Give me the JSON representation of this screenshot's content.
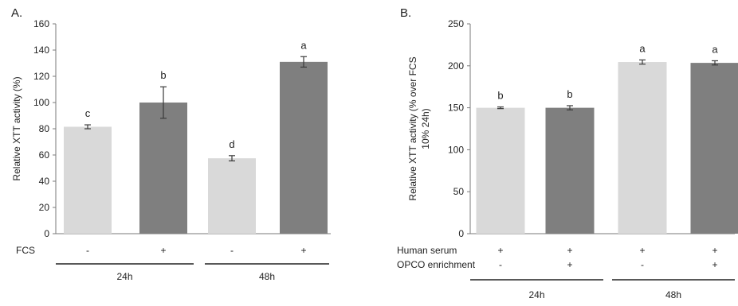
{
  "chart_data": [
    {
      "type": "bar",
      "panel_label": "A.",
      "ylabel": "Relative XTT activity (%)",
      "ylim": [
        0,
        160
      ],
      "yticks": [
        0,
        20,
        40,
        60,
        80,
        100,
        120,
        140,
        160
      ],
      "categories": [
        "24h -",
        "24h +",
        "48h -",
        "48h +"
      ],
      "values": [
        81.5,
        100,
        57.5,
        131
      ],
      "errors": [
        1.5,
        12,
        2,
        4
      ],
      "significance": [
        "c",
        "b",
        "d",
        "a"
      ],
      "bar_colors": [
        "#d9d9d9",
        "#7f7f7f",
        "#d9d9d9",
        "#7f7f7f"
      ],
      "conditions": [
        {
          "label": "FCS",
          "signs": [
            "-",
            "+",
            "-",
            "+"
          ]
        }
      ],
      "groups": [
        "24h",
        "48h"
      ]
    },
    {
      "type": "bar",
      "panel_label": "B.",
      "ylabel_lines": [
        "Relative XTT activity (% over FCS",
        "10% 24h)"
      ],
      "ylim": [
        0,
        250
      ],
      "yticks": [
        0,
        50,
        100,
        150,
        200,
        250
      ],
      "categories": [
        "24h -",
        "24h +",
        "48h -",
        "48h +"
      ],
      "values": [
        150,
        150,
        204.5,
        203.5
      ],
      "errors": [
        1,
        2.5,
        2.5,
        2.5
      ],
      "significance": [
        "b",
        "b",
        "a",
        "a"
      ],
      "bar_colors": [
        "#d9d9d9",
        "#7f7f7f",
        "#d9d9d9",
        "#7f7f7f"
      ],
      "conditions": [
        {
          "label": "Human serum",
          "signs": [
            "+",
            "+",
            "+",
            "+"
          ]
        },
        {
          "label": "OPCO enrichment",
          "signs": [
            "-",
            "+",
            "-",
            "+"
          ]
        }
      ],
      "groups": [
        "24h",
        "48h"
      ]
    }
  ]
}
